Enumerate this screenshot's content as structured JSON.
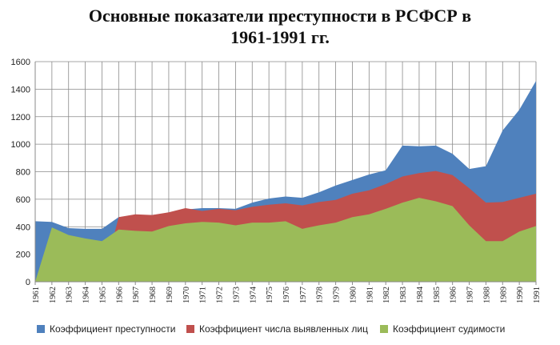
{
  "chart_data": {
    "type": "area",
    "title_line1": "Основные показатели преступности в РСФСР в",
    "title_line2": "1961-1991 гг.",
    "x": [
      "1961",
      "1962",
      "1963",
      "1964",
      "1965",
      "1966",
      "1967",
      "1968",
      "1969",
      "1970",
      "1971",
      "1972",
      "1973",
      "1974",
      "1975",
      "1976",
      "1977",
      "1978",
      "1979",
      "1980",
      "1981",
      "1982",
      "1983",
      "1984",
      "1985",
      "1986",
      "1987",
      "1988",
      "1989",
      "1990",
      "1991"
    ],
    "ylim": [
      0,
      1600
    ],
    "yticks": [
      0,
      200,
      400,
      600,
      800,
      1000,
      1200,
      1400,
      1600
    ],
    "grid": true,
    "legend_position": "bottom",
    "series": [
      {
        "name": "Коэффициент преступности",
        "color": "#4f81bd",
        "values": [
          440,
          435,
          390,
          385,
          385,
          470,
          480,
          485,
          500,
          525,
          535,
          535,
          530,
          575,
          605,
          620,
          610,
          650,
          700,
          740,
          780,
          810,
          990,
          985,
          990,
          930,
          820,
          840,
          1100,
          1250,
          1460
        ]
      },
      {
        "name": "Коэффициент числа выявленных лиц",
        "color": "#c0504d",
        "values": [
          0,
          0,
          0,
          0,
          0,
          470,
          490,
          485,
          505,
          535,
          515,
          530,
          520,
          545,
          560,
          570,
          555,
          580,
          595,
          640,
          665,
          710,
          765,
          790,
          805,
          775,
          680,
          575,
          580,
          610,
          640
        ]
      },
      {
        "name": "Коэффициент судимости",
        "color": "#9bbb59",
        "values": [
          0,
          395,
          340,
          315,
          295,
          380,
          370,
          365,
          405,
          425,
          435,
          430,
          410,
          430,
          430,
          440,
          385,
          410,
          430,
          470,
          490,
          530,
          575,
          610,
          585,
          550,
          410,
          295,
          295,
          365,
          405
        ]
      }
    ]
  }
}
